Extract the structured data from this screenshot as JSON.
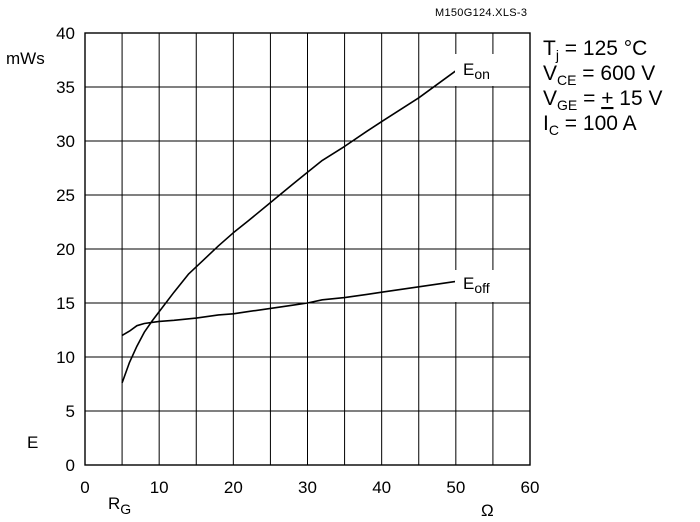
{
  "figure_id": "M150G124.XLS-3",
  "conditions": [
    {
      "main": "T",
      "sub": "j",
      "rest": " = 125 °C"
    },
    {
      "main": "V",
      "sub": "CE",
      "rest": " = 600 V"
    },
    {
      "main": "V",
      "sub": "GE",
      "rest_prefix": " = ",
      "rest_underlined": "+",
      "rest": " 15 V"
    },
    {
      "main": "I",
      "sub": "C",
      "rest": " = 100 A"
    }
  ],
  "chart_data": {
    "type": "line",
    "xlabel": {
      "main": "R",
      "sub": "G"
    },
    "xunit": "Ω",
    "ylabel": "E",
    "yunit": "mWs",
    "xlim": [
      0,
      60
    ],
    "ylim": [
      0,
      40
    ],
    "xticks": [
      0,
      10,
      20,
      30,
      40,
      50,
      60
    ],
    "yticks": [
      0,
      5,
      10,
      15,
      20,
      25,
      30,
      35,
      40
    ],
    "grid": true,
    "series": [
      {
        "name": "E_on",
        "label_main": "E",
        "label_sub": "on",
        "x": [
          5,
          6,
          7,
          8,
          9,
          10,
          12,
          14,
          16,
          18,
          20,
          22,
          25,
          28,
          30,
          32,
          35,
          38,
          40,
          45,
          50
        ],
        "y": [
          7.6,
          9.5,
          11.0,
          12.3,
          13.3,
          14.2,
          16.0,
          17.7,
          19.0,
          20.3,
          21.5,
          22.6,
          24.3,
          26.0,
          27.1,
          28.2,
          29.5,
          30.9,
          31.8,
          34.0,
          36.5
        ]
      },
      {
        "name": "E_off",
        "label_main": "E",
        "label_sub": "off",
        "x": [
          5,
          6,
          7,
          8,
          9,
          10,
          12,
          15,
          18,
          20,
          22,
          25,
          28,
          30,
          32,
          35,
          38,
          40,
          45,
          50
        ],
        "y": [
          12.0,
          12.4,
          12.9,
          13.1,
          13.2,
          13.3,
          13.4,
          13.6,
          13.9,
          14.0,
          14.2,
          14.5,
          14.8,
          15.0,
          15.3,
          15.5,
          15.8,
          16.0,
          16.5,
          17.0
        ]
      }
    ]
  }
}
